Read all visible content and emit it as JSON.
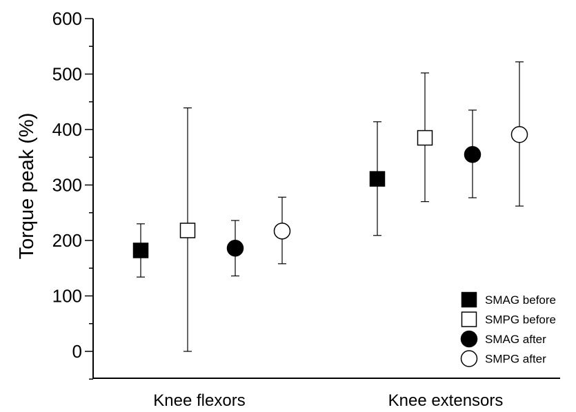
{
  "chart_data": {
    "type": "scatter",
    "title": "",
    "xlabel": "",
    "ylabel": "Torque peak (%)",
    "categories": [
      "Knee flexors",
      "Knee extensors"
    ],
    "ylim": [
      -50,
      600
    ],
    "yticks": [
      0,
      100,
      200,
      300,
      400,
      500,
      600
    ],
    "y_minor_step": 50,
    "grid": false,
    "legend_position": "bottom-right",
    "series": [
      {
        "name": "SMAG before",
        "marker": "square",
        "fill": "#000000",
        "values": [
          182,
          311
        ],
        "err_low": [
          134,
          209
        ],
        "err_high": [
          230,
          414
        ]
      },
      {
        "name": "SMPG before",
        "marker": "square",
        "fill": "#ffffff",
        "values": [
          218,
          385
        ],
        "err_low": [
          0,
          270
        ],
        "err_high": [
          439,
          502
        ]
      },
      {
        "name": "SMAG after",
        "marker": "circle",
        "fill": "#000000",
        "values": [
          186,
          355
        ],
        "err_low": [
          136,
          277
        ],
        "err_high": [
          236,
          435
        ]
      },
      {
        "name": "SMPG after",
        "marker": "circle",
        "fill": "#ffffff",
        "values": [
          217,
          391
        ],
        "err_low": [
          158,
          262
        ],
        "err_high": [
          278,
          522
        ]
      }
    ]
  }
}
